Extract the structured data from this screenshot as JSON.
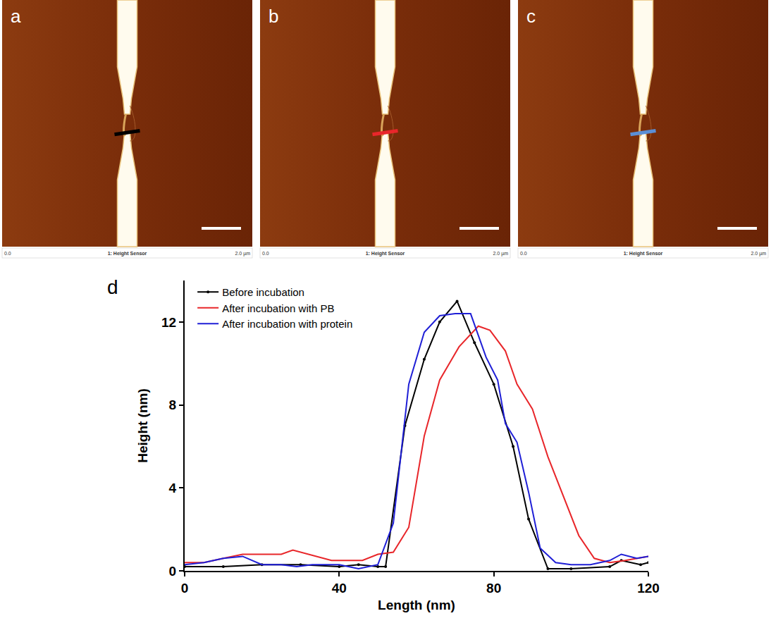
{
  "panels": [
    {
      "label": "a",
      "caption": "1: Height Sensor",
      "scale_start": "0.0",
      "scale_end": "2.0 µm",
      "line_color": "#000000"
    },
    {
      "label": "b",
      "caption": "1: Height Sensor",
      "scale_start": "0.0",
      "scale_end": "2.0 µm",
      "line_color": "#e8262a"
    },
    {
      "label": "c",
      "caption": "1: Height Sensor",
      "scale_start": "0.0",
      "scale_end": "2.0 µm",
      "line_color": "#5b8fd6"
    }
  ],
  "chart_data": {
    "label": "d",
    "type": "line",
    "x_label": "Length (nm)",
    "y_label": "Height (nm)",
    "xlim": [
      0,
      120
    ],
    "xticks": [
      0,
      40,
      80,
      120
    ],
    "ylim": [
      0,
      14
    ],
    "yticks": [
      0,
      4,
      8,
      12
    ],
    "legend": "upper left",
    "series": [
      {
        "name": "Before incubation",
        "color": "#000000",
        "marker": "circle",
        "x": [
          0,
          10,
          20,
          30,
          40,
          45,
          50,
          52,
          57,
          62,
          66,
          70.5,
          75,
          80,
          85,
          89,
          94,
          100,
          110,
          113,
          118,
          120
        ],
        "values": [
          0.2,
          0.2,
          0.3,
          0.3,
          0.2,
          0.3,
          0.2,
          0.2,
          7,
          10.2,
          12,
          13,
          11,
          9,
          6,
          2.5,
          0.1,
          0.1,
          0.2,
          0.5,
          0.3,
          0.4
        ]
      },
      {
        "name": "After incubation with PB",
        "color": "#e8262a",
        "x": [
          0,
          5,
          10,
          15,
          20,
          25,
          28,
          32,
          38,
          46,
          50,
          54,
          58,
          62,
          66,
          71,
          76,
          79,
          83,
          86,
          90,
          94,
          98,
          102,
          106,
          110,
          114,
          120
        ],
        "values": [
          0.4,
          0.4,
          0.6,
          0.8,
          0.8,
          0.8,
          1.0,
          0.8,
          0.5,
          0.5,
          0.8,
          0.9,
          2.1,
          6.5,
          9.2,
          10.8,
          11.8,
          11.6,
          10.6,
          9.0,
          7.8,
          5.5,
          3.6,
          1.7,
          0.6,
          0.4,
          0.5,
          0.7
        ]
      },
      {
        "name": "After incubation with protein",
        "color": "#1f1fd6",
        "x": [
          0,
          5,
          10,
          15,
          20,
          25,
          29,
          33,
          40,
          45,
          50,
          54,
          58,
          62,
          66,
          70,
          74,
          78,
          81,
          83,
          86,
          89,
          92,
          96,
          100,
          105,
          110,
          113,
          117,
          120
        ],
        "values": [
          0.3,
          0.4,
          0.6,
          0.7,
          0.3,
          0.3,
          0.2,
          0.3,
          0.3,
          0.1,
          0.3,
          2.3,
          9.0,
          11.5,
          12.3,
          12.4,
          12.4,
          10.3,
          9.2,
          7.1,
          6.2,
          3.8,
          1.1,
          0.4,
          0.3,
          0.3,
          0.5,
          0.8,
          0.6,
          0.7
        ]
      }
    ]
  }
}
